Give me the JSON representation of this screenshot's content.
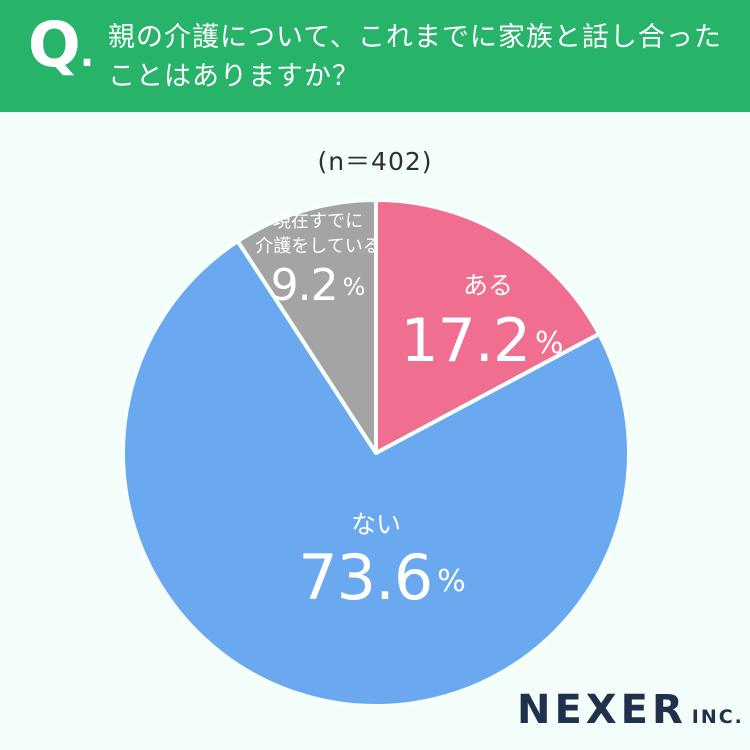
{
  "header": {
    "q_mark": "Q",
    "q_dot": ".",
    "question": "親の介護について、これまでに家族と話し合ったことはありますか？"
  },
  "sample": "(n＝402)",
  "brand": {
    "name": "NEXER",
    "suffix": "INC."
  },
  "colors": {
    "header": "#27b36a",
    "background": "#f3fdf9",
    "aru": "#f06e8f",
    "nai": "#6aa9f0",
    "already": "#a4a4a4"
  },
  "chart_data": {
    "type": "pie",
    "title": "",
    "sample_size": "n＝402",
    "start_angle": "top",
    "direction": "clockwise",
    "slices": [
      {
        "label": "ある",
        "label_lines": [
          "ある"
        ],
        "value": 17.2,
        "value_label": "17.2",
        "unit": "%",
        "color": "#f06e8f"
      },
      {
        "label": "ない",
        "label_lines": [
          "ない"
        ],
        "value": 73.6,
        "value_label": "73.6",
        "unit": "%",
        "color": "#6aa9f0"
      },
      {
        "label": "現在すでに介護をしている",
        "label_lines": [
          "現在すでに",
          "介護をしている"
        ],
        "value": 9.2,
        "value_label": "9.2",
        "unit": "%",
        "color": "#a4a4a4"
      }
    ]
  }
}
